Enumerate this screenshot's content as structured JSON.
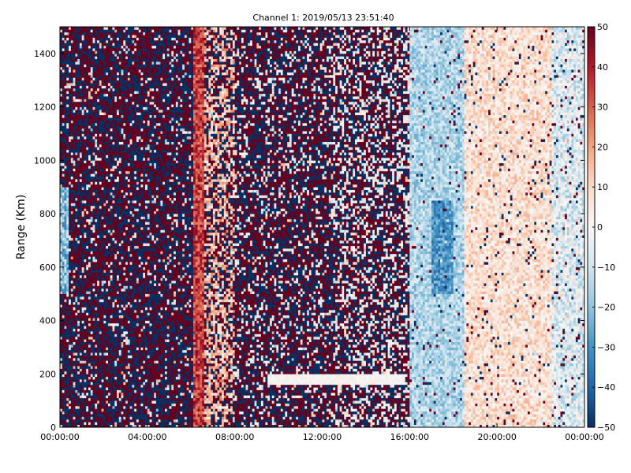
{
  "chart_data": {
    "type": "heatmap",
    "title": "Channel 1: 2019/05/13 23:51:40",
    "ylabel": "Range (Km)",
    "xlabel": "",
    "x_tick_labels": [
      "00:00:00",
      "04:00:00",
      "08:00:00",
      "12:00:00",
      "16:00:00",
      "20:00:00",
      "00:00:00"
    ],
    "x_ticks_hours": [
      0,
      4,
      8,
      12,
      16,
      20,
      24
    ],
    "xlim_hours": [
      0,
      24
    ],
    "y_ticks": [
      0,
      200,
      400,
      600,
      800,
      1000,
      1200,
      1400
    ],
    "ylim": [
      0,
      1500
    ],
    "colorbar": {
      "min": -50,
      "max": 50,
      "ticks": [
        50,
        40,
        30,
        20,
        10,
        0,
        -10,
        -20,
        -30,
        -40,
        -50
      ],
      "colormap": "RdBu_r",
      "stops": [
        "#053061",
        "#2166ac",
        "#4393c3",
        "#92c5de",
        "#d1e5f0",
        "#f7f7f7",
        "#fddbc7",
        "#f4a582",
        "#d6604d",
        "#b2182b",
        "#67001f"
      ]
    },
    "grid": {
      "time_bins": 240,
      "range_bins": 150
    },
    "regions": [
      {
        "name": "noise",
        "hours": [
          0,
          6.1
        ],
        "pattern": "random-extreme"
      },
      {
        "name": "strong-echo",
        "hours": [
          6.1,
          6.6
        ],
        "range": [
          0,
          1500
        ],
        "value": 30
      },
      {
        "name": "mixed",
        "hours": [
          6.6,
          16
        ],
        "pattern": "random-extreme-with-weak"
      },
      {
        "name": "near-zero-strip",
        "hours": [
          9.5,
          15.8
        ],
        "range": [
          160,
          200
        ],
        "value": 2
      },
      {
        "name": "negative",
        "hours": [
          16,
          18.5
        ],
        "range": [
          0,
          1500
        ],
        "value": -20
      },
      {
        "name": "weak-positive",
        "hours": [
          18.5,
          22.5
        ],
        "range": [
          0,
          1500
        ],
        "value": 10
      },
      {
        "name": "end",
        "hours": [
          22.5,
          24
        ],
        "range": [
          0,
          1500
        ],
        "value": -5
      }
    ]
  }
}
